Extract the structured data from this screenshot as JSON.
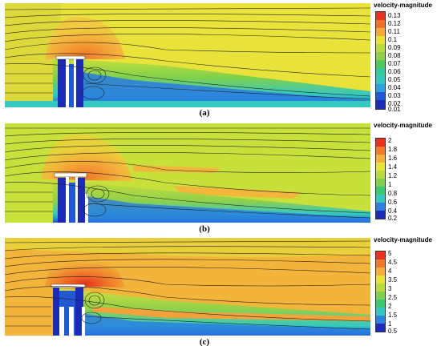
{
  "legend_title": "velocity-magnitude",
  "panels": [
    {
      "caption_open": "(",
      "caption_letter": "a",
      "caption_close": ")",
      "legend_ticks": [
        "0.13",
        "0.12",
        "0.11",
        "0.1",
        "0.09",
        "0.08",
        "0.07",
        "0.06",
        "0.05",
        "0.04",
        "0.03",
        "0.02",
        "0.01"
      ]
    },
    {
      "caption_open": "(",
      "caption_letter": "b",
      "caption_close": ")",
      "legend_ticks": [
        "2",
        "1.8",
        "1.6",
        "1.4",
        "1.2",
        "1",
        "0.8",
        "0.6",
        "0.4",
        "0.2"
      ]
    },
    {
      "caption_open": "(",
      "caption_letter": "c",
      "caption_close": ")",
      "legend_ticks": [
        "5",
        "4.5",
        "4",
        "3.5",
        "3",
        "2.5",
        "2",
        "1.5",
        "1",
        "0.5"
      ]
    }
  ],
  "colors": {
    "freestream": "#e8e23a",
    "dome": "#f4a93a",
    "wake_green": "#8fd04a",
    "wake_cyan": "#33c9c0",
    "wake_blue": "#2158d6",
    "deep_blue": "#1b2ab8",
    "red": "#e8321e"
  }
}
